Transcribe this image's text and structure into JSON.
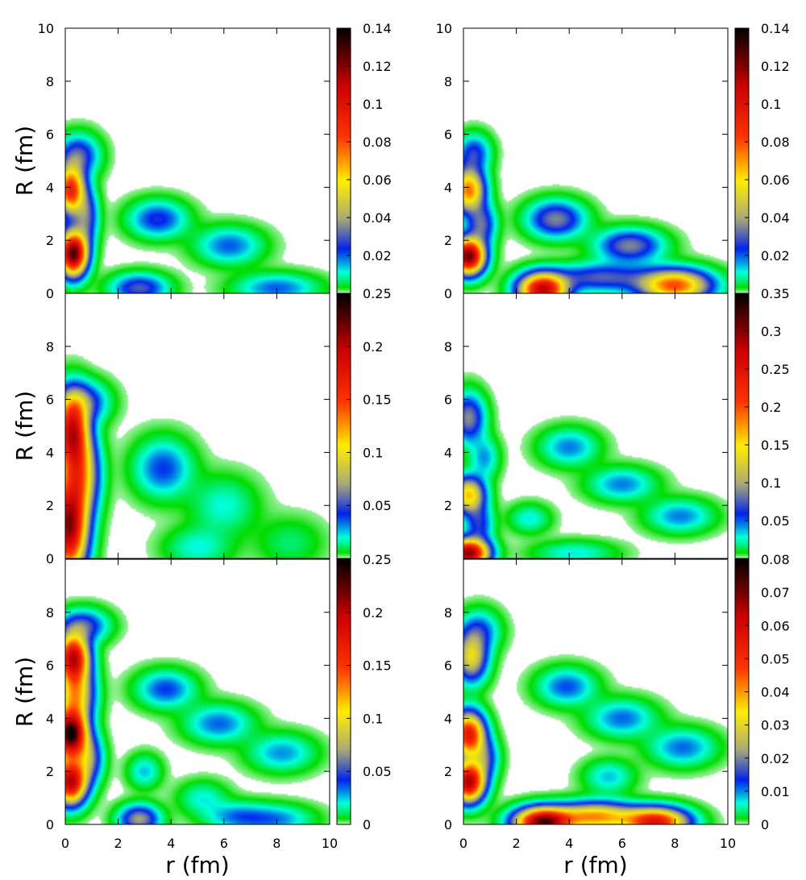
{
  "chart_data": {
    "type": "heatmap",
    "layout": "3 rows x 2 columns",
    "xlabel": "r (fm)",
    "ylabel": "R (fm)",
    "xlim": [
      0,
      10
    ],
    "ylim": [
      0,
      10
    ],
    "x_ticks": [
      "0",
      "2",
      "4",
      "6",
      "8",
      "10"
    ],
    "y_ticks_full": [
      "0",
      "2",
      "4",
      "6",
      "8",
      "10"
    ],
    "y_ticks_middle": [
      "0",
      "2",
      "4",
      "6",
      "8"
    ],
    "y_ticks_bottom": [
      "0",
      "2",
      "4",
      "6",
      "8"
    ],
    "y_ticks_middle_right": [
      "2",
      "4",
      "6",
      "8"
    ],
    "colormap": [
      "#ffffff",
      "#00dd00",
      "#00ffdd",
      "#0022ee",
      "#aaaa77",
      "#ffee00",
      "#ff3300",
      "#cc0000",
      "#000000"
    ],
    "panels": [
      {
        "row": 1,
        "col": 1,
        "cbar_max": 0.14,
        "cbar_ticks": [
          "0.02",
          "0.04",
          "0.06",
          "0.08",
          "0.1",
          "0.12",
          "0.14"
        ],
        "cbar_tick_values": [
          0.02,
          0.04,
          0.06,
          0.08,
          0.1,
          0.12,
          0.14
        ],
        "blobs": [
          {
            "r": 0.3,
            "R": 1.5,
            "peak": 0.13,
            "sr": 0.35,
            "sR": 0.55
          },
          {
            "r": 0.2,
            "R": 3.9,
            "peak": 0.09,
            "sr": 0.35,
            "sR": 0.6
          },
          {
            "r": 0.8,
            "R": 2.9,
            "peak": 0.03,
            "sr": 0.3,
            "sR": 0.7
          },
          {
            "r": 0.5,
            "R": 5.2,
            "peak": 0.03,
            "sr": 0.5,
            "sR": 0.5
          },
          {
            "r": 3.5,
            "R": 2.8,
            "peak": 0.025,
            "sr": 0.7,
            "sR": 0.45
          },
          {
            "r": 6.2,
            "R": 1.8,
            "peak": 0.02,
            "sr": 0.8,
            "sR": 0.45
          },
          {
            "r": 2.8,
            "R": 0.2,
            "peak": 0.03,
            "sr": 0.7,
            "sR": 0.35
          },
          {
            "r": 8.0,
            "R": 0.2,
            "peak": 0.02,
            "sr": 1.0,
            "sR": 0.35
          }
        ]
      },
      {
        "row": 1,
        "col": 2,
        "cbar_max": 0.14,
        "cbar_ticks": [
          "0.02",
          "0.04",
          "0.06",
          "0.08",
          "0.1",
          "0.12",
          "0.14"
        ],
        "cbar_tick_values": [
          0.02,
          0.04,
          0.06,
          0.08,
          0.1,
          0.12,
          0.14
        ],
        "blobs": [
          {
            "r": 0.2,
            "R": 1.4,
            "peak": 0.125,
            "sr": 0.4,
            "sR": 0.45
          },
          {
            "r": 0.2,
            "R": 3.9,
            "peak": 0.075,
            "sr": 0.4,
            "sR": 0.55
          },
          {
            "r": 0.7,
            "R": 2.6,
            "peak": 0.03,
            "sr": 0.35,
            "sR": 0.5
          },
          {
            "r": 0.4,
            "R": 5.3,
            "peak": 0.025,
            "sr": 0.4,
            "sR": 0.45
          },
          {
            "r": 3.5,
            "R": 2.8,
            "peak": 0.035,
            "sr": 0.7,
            "sR": 0.45
          },
          {
            "r": 6.3,
            "R": 1.8,
            "peak": 0.035,
            "sr": 0.8,
            "sR": 0.4
          },
          {
            "r": 3.0,
            "R": 0.15,
            "peak": 0.11,
            "sr": 0.6,
            "sR": 0.4
          },
          {
            "r": 5.2,
            "R": 0.6,
            "peak": 0.03,
            "sr": 1.2,
            "sR": 0.35
          },
          {
            "r": 8.0,
            "R": 0.3,
            "peak": 0.08,
            "sr": 0.9,
            "sR": 0.4
          }
        ]
      },
      {
        "row": 2,
        "col": 1,
        "cbar_max": 0.25,
        "cbar_ticks": [
          "0.05",
          "0.1",
          "0.15",
          "0.2",
          "0.25"
        ],
        "cbar_tick_values": [
          0.05,
          0.1,
          0.15,
          0.2,
          0.25
        ],
        "blobs": [
          {
            "r": 0.15,
            "R": 1.2,
            "peak": 0.21,
            "sr": 0.45,
            "sR": 1.2
          },
          {
            "r": 0.25,
            "R": 4.8,
            "peak": 0.18,
            "sr": 0.4,
            "sR": 0.9
          },
          {
            "r": 0.6,
            "R": 3.2,
            "peak": 0.1,
            "sr": 0.45,
            "sR": 1.0
          },
          {
            "r": 0.7,
            "R": 5.9,
            "peak": 0.05,
            "sr": 0.6,
            "sR": 0.5
          },
          {
            "r": 3.7,
            "R": 3.4,
            "peak": 0.04,
            "sr": 0.7,
            "sR": 0.7
          },
          {
            "r": 6.0,
            "R": 2.0,
            "peak": 0.02,
            "sr": 0.8,
            "sR": 0.7
          },
          {
            "r": 5.0,
            "R": 0.4,
            "peak": 0.02,
            "sr": 0.8,
            "sR": 0.5
          },
          {
            "r": 8.5,
            "R": 0.6,
            "peak": 0.012,
            "sr": 0.8,
            "sR": 0.6
          }
        ]
      },
      {
        "row": 2,
        "col": 2,
        "cbar_max": 0.35,
        "cbar_ticks": [
          "0.05",
          "0.1",
          "0.15",
          "0.2",
          "0.25",
          "0.3",
          "0.35"
        ],
        "cbar_tick_values": [
          0.05,
          0.1,
          0.15,
          0.2,
          0.25,
          0.3,
          0.35
        ],
        "blobs": [
          {
            "r": 0.2,
            "R": 0.2,
            "peak": 0.3,
            "sr": 0.5,
            "sR": 0.35
          },
          {
            "r": 0.2,
            "R": 2.4,
            "peak": 0.16,
            "sr": 0.4,
            "sR": 0.45
          },
          {
            "r": 0.6,
            "R": 1.3,
            "peak": 0.06,
            "sr": 0.35,
            "sR": 0.5
          },
          {
            "r": 0.2,
            "R": 5.3,
            "peak": 0.09,
            "sr": 0.4,
            "sR": 0.6
          },
          {
            "r": 0.8,
            "R": 3.8,
            "peak": 0.04,
            "sr": 0.35,
            "sR": 0.5
          },
          {
            "r": 4.0,
            "R": 4.2,
            "peak": 0.045,
            "sr": 0.7,
            "sR": 0.45
          },
          {
            "r": 6.0,
            "R": 2.8,
            "peak": 0.045,
            "sr": 0.8,
            "sR": 0.4
          },
          {
            "r": 8.2,
            "R": 1.6,
            "peak": 0.045,
            "sr": 0.8,
            "sR": 0.4
          },
          {
            "r": 2.5,
            "R": 1.5,
            "peak": 0.03,
            "sr": 0.5,
            "sR": 0.35
          },
          {
            "r": 4.2,
            "R": 0.2,
            "peak": 0.03,
            "sr": 1.0,
            "sR": 0.3
          }
        ]
      },
      {
        "row": 3,
        "col": 1,
        "cbar_max": 0.25,
        "cbar_ticks": [
          "0",
          "0.05",
          "0.1",
          "0.15",
          "0.2",
          "0.25"
        ],
        "cbar_tick_values": [
          0,
          0.05,
          0.1,
          0.15,
          0.2,
          0.25
        ],
        "blobs": [
          {
            "r": 0.2,
            "R": 1.6,
            "peak": 0.2,
            "sr": 0.4,
            "sR": 0.55
          },
          {
            "r": 0.2,
            "R": 3.4,
            "peak": 0.24,
            "sr": 0.4,
            "sR": 0.6
          },
          {
            "r": 0.3,
            "R": 6.3,
            "peak": 0.19,
            "sr": 0.4,
            "sR": 0.6
          },
          {
            "r": 0.4,
            "R": 4.9,
            "peak": 0.11,
            "sr": 0.45,
            "sR": 0.7
          },
          {
            "r": 0.9,
            "R": 2.5,
            "peak": 0.06,
            "sr": 0.35,
            "sR": 0.6
          },
          {
            "r": 0.7,
            "R": 7.5,
            "peak": 0.05,
            "sr": 0.6,
            "sR": 0.4
          },
          {
            "r": 3.8,
            "R": 5.1,
            "peak": 0.04,
            "sr": 0.7,
            "sR": 0.45
          },
          {
            "r": 5.8,
            "R": 3.8,
            "peak": 0.035,
            "sr": 0.8,
            "sR": 0.45
          },
          {
            "r": 8.2,
            "R": 2.7,
            "peak": 0.03,
            "sr": 0.8,
            "sR": 0.45
          },
          {
            "r": 2.8,
            "R": 0.2,
            "peak": 0.07,
            "sr": 0.5,
            "sR": 0.35
          },
          {
            "r": 3.0,
            "R": 2.0,
            "peak": 0.025,
            "sr": 0.4,
            "sR": 0.4
          },
          {
            "r": 5.2,
            "R": 1.0,
            "peak": 0.02,
            "sr": 0.6,
            "sR": 0.4
          },
          {
            "r": 6.5,
            "R": 0.3,
            "peak": 0.03,
            "sr": 0.8,
            "sR": 0.35
          },
          {
            "r": 8.0,
            "R": 0.2,
            "peak": 0.03,
            "sr": 0.9,
            "sR": 0.35
          }
        ]
      },
      {
        "row": 3,
        "col": 2,
        "cbar_max": 0.08,
        "cbar_ticks": [
          "0",
          "0.01",
          "0.02",
          "0.03",
          "0.04",
          "0.05",
          "0.06",
          "0.07",
          "0.08"
        ],
        "cbar_tick_values": [
          0,
          0.01,
          0.02,
          0.03,
          0.04,
          0.05,
          0.06,
          0.07,
          0.08
        ],
        "blobs": [
          {
            "r": 0.2,
            "R": 1.6,
            "peak": 0.065,
            "sr": 0.4,
            "sR": 0.5
          },
          {
            "r": 0.2,
            "R": 3.4,
            "peak": 0.055,
            "sr": 0.4,
            "sR": 0.55
          },
          {
            "r": 0.3,
            "R": 6.3,
            "peak": 0.03,
            "sr": 0.4,
            "sR": 0.6
          },
          {
            "r": 0.8,
            "R": 2.5,
            "peak": 0.015,
            "sr": 0.35,
            "sR": 0.5
          },
          {
            "r": 0.6,
            "R": 7.3,
            "peak": 0.012,
            "sr": 0.5,
            "sR": 0.5
          },
          {
            "r": 3.9,
            "R": 5.2,
            "peak": 0.012,
            "sr": 0.7,
            "sR": 0.45
          },
          {
            "r": 6.0,
            "R": 4.0,
            "peak": 0.011,
            "sr": 0.8,
            "sR": 0.45
          },
          {
            "r": 8.3,
            "R": 2.9,
            "peak": 0.011,
            "sr": 0.8,
            "sR": 0.45
          },
          {
            "r": 3.0,
            "R": 0.1,
            "peak": 0.07,
            "sr": 0.7,
            "sR": 0.35
          },
          {
            "r": 5.0,
            "R": 0.3,
            "peak": 0.04,
            "sr": 1.0,
            "sR": 0.35
          },
          {
            "r": 7.3,
            "R": 0.1,
            "peak": 0.055,
            "sr": 0.8,
            "sR": 0.35
          },
          {
            "r": 5.5,
            "R": 1.8,
            "peak": 0.008,
            "sr": 0.6,
            "sR": 0.4
          }
        ]
      }
    ]
  }
}
